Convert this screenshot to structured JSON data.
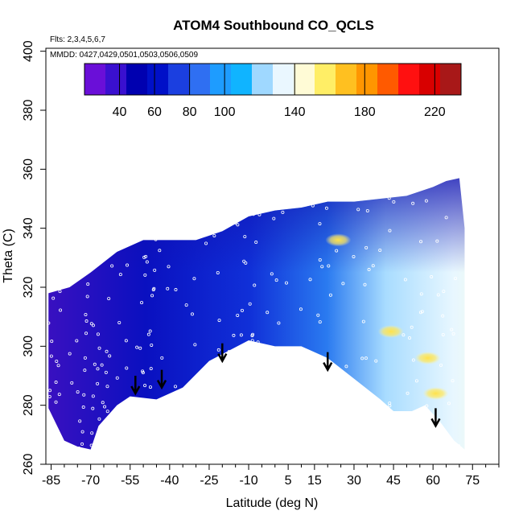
{
  "chart_data": {
    "type": "heatmap",
    "title": "ATOM4 Southbound CO_QCLS",
    "flights_note": "Flts: 2,3,4,5,6,7",
    "dates_note": "MMDD: 0427,0429,0501,0503,0506,0509",
    "xlabel": "Latitude (deg N)",
    "ylabel": "Theta (C)",
    "xlim": [
      -87,
      85
    ],
    "ylim": [
      260,
      401
    ],
    "x_ticks": [
      -85,
      -70,
      -55,
      -40,
      -25,
      -10,
      5,
      15,
      30,
      45,
      60,
      75
    ],
    "y_ticks": [
      260,
      280,
      300,
      320,
      340,
      360,
      380,
      400
    ],
    "colorbar": {
      "range": [
        20,
        235
      ],
      "ticks": [
        40,
        60,
        80,
        100,
        140,
        180,
        220
      ],
      "colors": [
        "#6a0fd8",
        "#3a10d0",
        "#0000b0",
        "#0010c8",
        "#1b3fe0",
        "#2f6ff2",
        "#1e9cff",
        "#10b4ff",
        "#9fd8ff",
        "#eaf7ff",
        "#fffbd6",
        "#ffee66",
        "#ffc020",
        "#ff9600",
        "#ff5a00",
        "#ff1010",
        "#d80000",
        "#a81818"
      ]
    },
    "arrows": [
      {
        "lat": -53,
        "theta": 290
      },
      {
        "lat": -43,
        "theta": 292
      },
      {
        "lat": -20,
        "theta": 301
      },
      {
        "lat": 20,
        "theta": 298
      },
      {
        "lat": 61,
        "theta": 279
      }
    ],
    "coverage_top": [
      [
        -86,
        318
      ],
      [
        -78,
        320
      ],
      [
        -70,
        325
      ],
      [
        -60,
        332
      ],
      [
        -50,
        336
      ],
      [
        -40,
        336
      ],
      [
        -30,
        336
      ],
      [
        -20,
        339
      ],
      [
        -10,
        344
      ],
      [
        0,
        346
      ],
      [
        10,
        347
      ],
      [
        20,
        349
      ],
      [
        30,
        349
      ],
      [
        40,
        350
      ],
      [
        50,
        351
      ],
      [
        60,
        354
      ],
      [
        65,
        356
      ],
      [
        70,
        357
      ]
    ],
    "coverage_bottom": [
      [
        -86,
        279
      ],
      [
        -80,
        268
      ],
      [
        -75,
        266
      ],
      [
        -70,
        265
      ],
      [
        -67,
        273
      ],
      [
        -60,
        280
      ],
      [
        -55,
        283
      ],
      [
        -45,
        282
      ],
      [
        -35,
        286
      ],
      [
        -25,
        295
      ],
      [
        -10,
        302
      ],
      [
        0,
        300
      ],
      [
        10,
        300
      ],
      [
        20,
        296
      ],
      [
        30,
        289
      ],
      [
        40,
        282
      ],
      [
        45,
        278
      ],
      [
        52,
        278
      ],
      [
        57,
        280
      ],
      [
        63,
        274
      ],
      [
        68,
        268
      ],
      [
        72,
        265
      ]
    ],
    "hotspots": [
      {
        "lat": 24,
        "theta": 336,
        "value": 150
      },
      {
        "lat": 44,
        "theta": 305,
        "value": 165
      },
      {
        "lat": 58,
        "theta": 296,
        "value": 150
      },
      {
        "lat": 61,
        "theta": 284,
        "value": 145
      }
    ]
  }
}
